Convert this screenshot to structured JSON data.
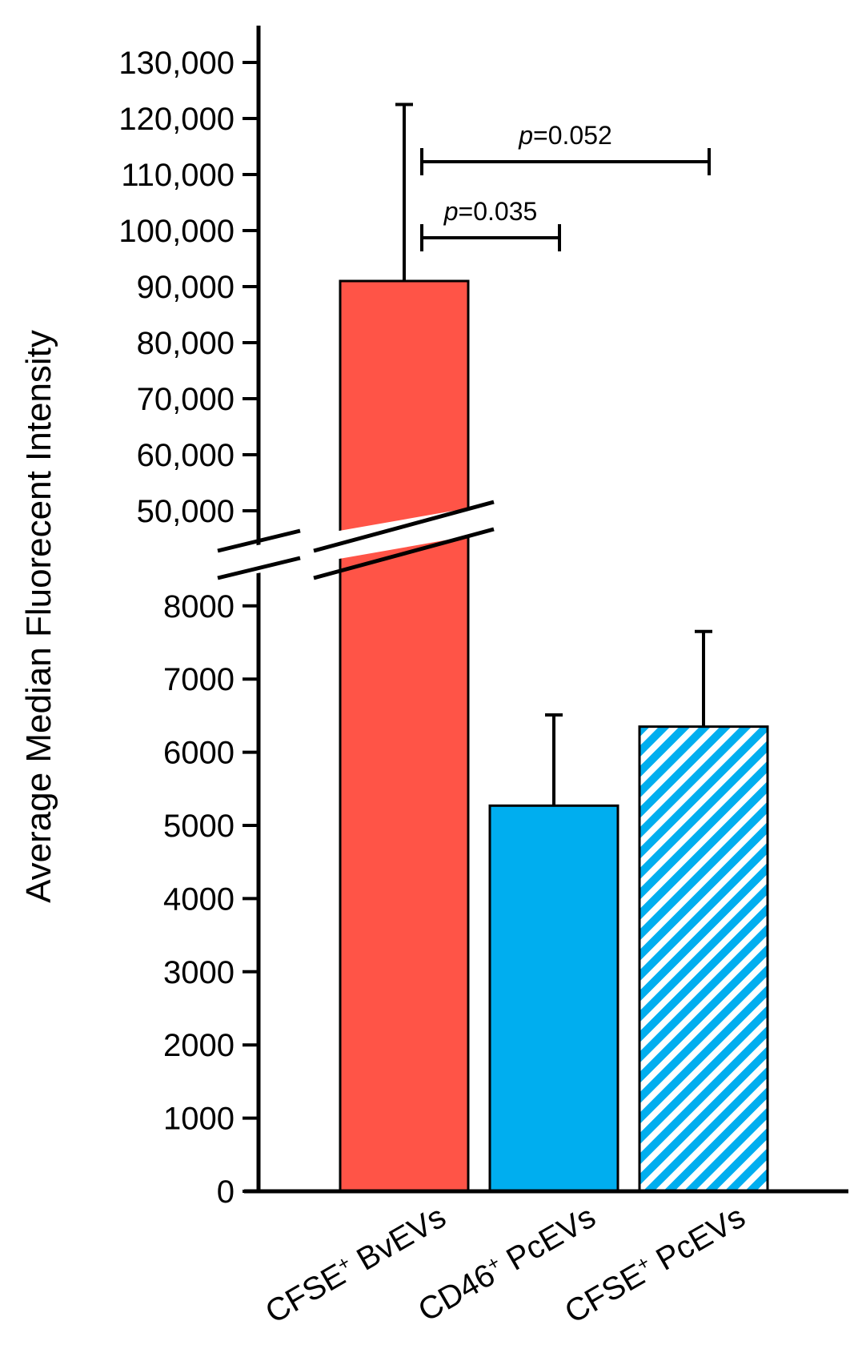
{
  "chart_data": {
    "type": "bar",
    "ylabel": "Average Median Fluorecent Intensity",
    "axis_break": {
      "lower_range": [
        0,
        8000
      ],
      "upper_range": [
        50000,
        130000
      ]
    },
    "y_ticks_lower": [
      "0",
      "1000",
      "2000",
      "3000",
      "4000",
      "5000",
      "6000",
      "7000",
      "8000"
    ],
    "y_ticks_upper": [
      "50,000",
      "60,000",
      "70,000",
      "80,000",
      "90,000",
      "100,000",
      "110,000",
      "120,000",
      "130,000"
    ],
    "categories": [
      {
        "main": "CFSE",
        "sup": "+",
        "rest": " BvEVs"
      },
      {
        "main": "CD46",
        "sup": "+",
        "rest": " PcEVs"
      },
      {
        "main": "CFSE",
        "sup": "+",
        "rest": " PcEVs"
      }
    ],
    "values": [
      91000,
      5270,
      6350
    ],
    "error_upper": [
      122500,
      6510,
      7650
    ],
    "bar_colors": [
      "#FF5447",
      "#00AEEF",
      "#00AEEF"
    ],
    "bar_fill_styles": [
      "solid",
      "solid",
      "striped"
    ],
    "comparisons": [
      {
        "from": 0,
        "to": 1,
        "p_italic": "p",
        "p_rest": "=0.035"
      },
      {
        "from": 0,
        "to": 2,
        "p_italic": "p",
        "p_rest": "=0.052"
      }
    ]
  }
}
